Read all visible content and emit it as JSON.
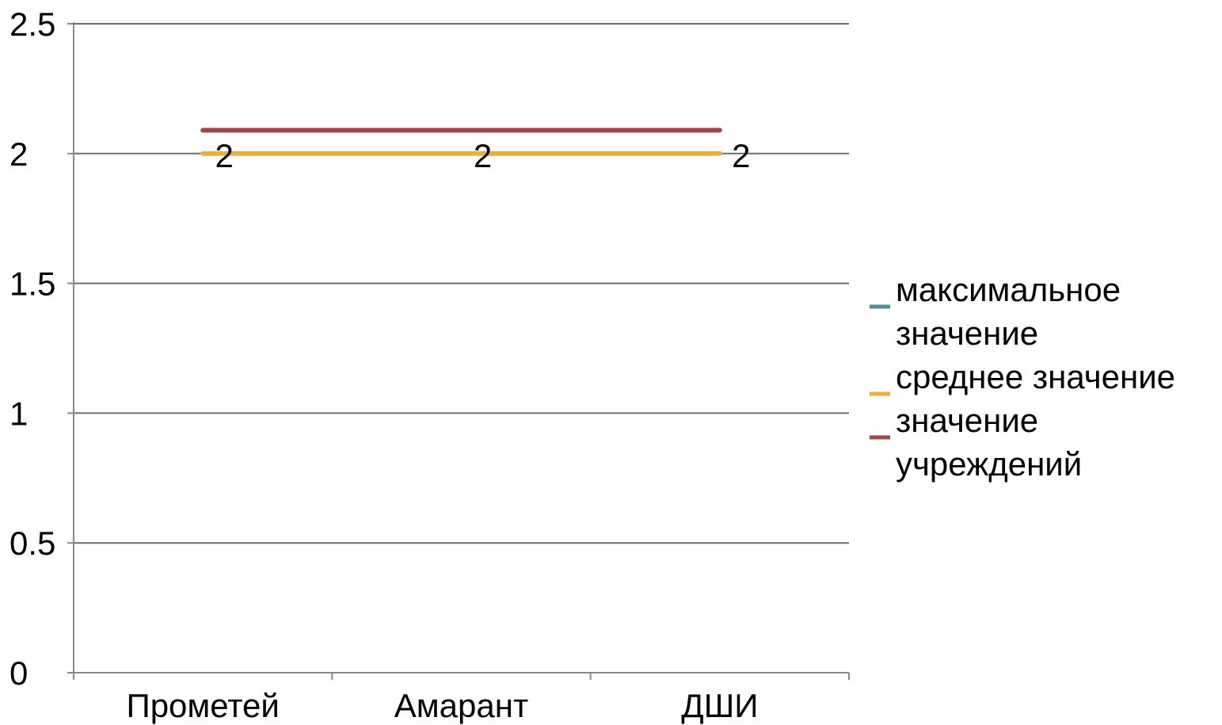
{
  "chart_data": {
    "type": "line",
    "categories": [
      "Прометей",
      "Амарант",
      "ДШИ"
    ],
    "ylim": [
      0,
      2.5
    ],
    "yticks": [
      "0",
      "0.5",
      "1",
      "1.5",
      "2",
      "2.5"
    ],
    "grid": true,
    "legend_position": "right",
    "series": [
      {
        "name": "максимальное значение",
        "legend_lines": [
          "максимальное",
          "значение"
        ],
        "color": "#4e8f8f",
        "values": [
          2,
          2,
          2
        ],
        "show_labels": false,
        "drawn": false
      },
      {
        "name": "среднее значение",
        "legend_lines": [
          "среднее значение"
        ],
        "color": "#e8b13e",
        "values": [
          2,
          2,
          2
        ],
        "show_labels": true,
        "drawn": true
      },
      {
        "name": "значение учреждений",
        "legend_lines": [
          "значение",
          "учреждений"
        ],
        "color": "#a04848",
        "values": [
          2.09,
          2.09,
          2.09
        ],
        "show_labels": false,
        "drawn": true
      }
    ],
    "data_labels": [
      "2",
      "2",
      "2"
    ]
  }
}
